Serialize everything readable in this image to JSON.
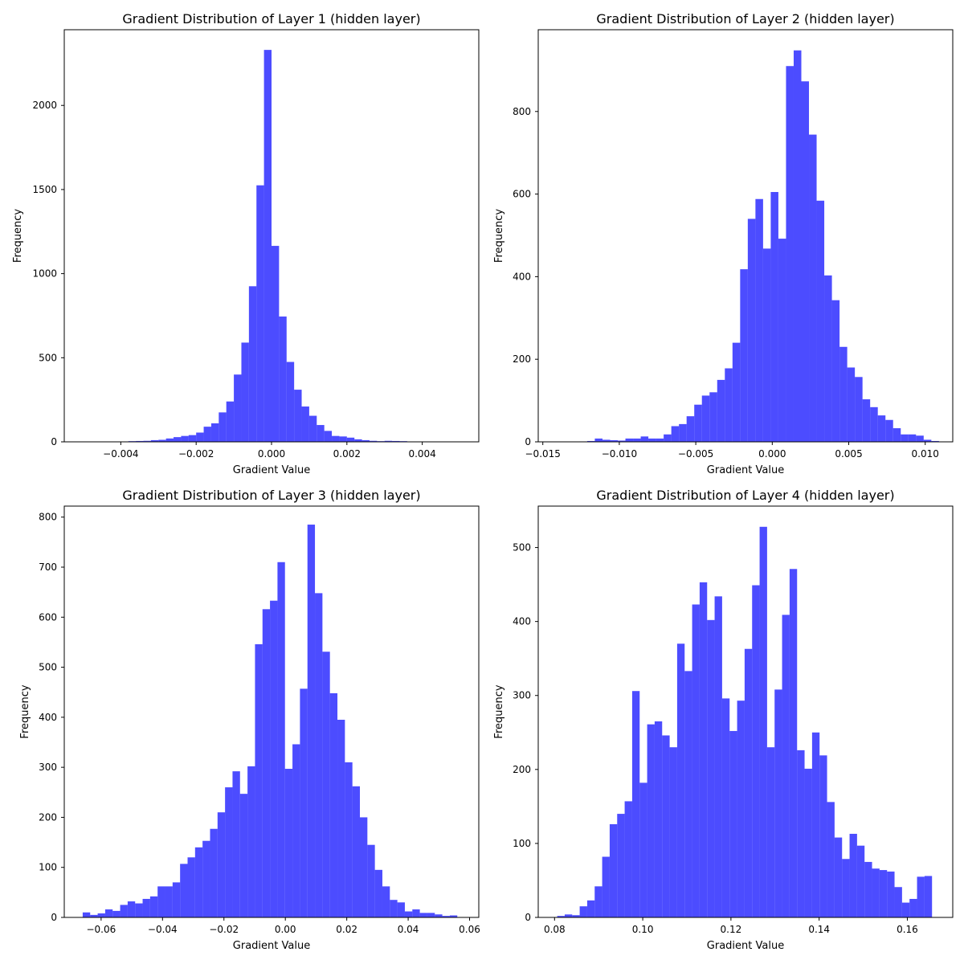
{
  "chart_data": [
    {
      "type": "bar",
      "title": "Gradient Distribution of Layer 1 (hidden layer)",
      "xlabel": "Gradient Value",
      "ylabel": "Frequency",
      "xlim": [
        -0.0055,
        0.0055
      ],
      "ylim": [
        0,
        2450
      ],
      "xticks": [
        -0.004,
        -0.002,
        0.0,
        0.002,
        0.004
      ],
      "xtick_labels": [
        "−0.004",
        "−0.002",
        "0.000",
        "0.002",
        "0.004"
      ],
      "yticks": [
        0,
        500,
        1000,
        1500,
        2000
      ],
      "ytick_labels": [
        "0",
        "500",
        "1000",
        "1500",
        "2000"
      ],
      "bin_start": -0.005,
      "bin_width": 0.0002,
      "values": [
        0,
        0,
        0,
        1,
        1,
        2,
        4,
        5,
        6,
        10,
        12,
        20,
        28,
        35,
        40,
        55,
        90,
        110,
        175,
        240,
        400,
        590,
        925,
        1525,
        2330,
        1165,
        745,
        475,
        310,
        210,
        155,
        100,
        65,
        35,
        32,
        25,
        15,
        10,
        6,
        4,
        6,
        5,
        4,
        2,
        1,
        1,
        0,
        0,
        0,
        0
      ]
    },
    {
      "type": "bar",
      "title": "Gradient Distribution of Layer 2 (hidden layer)",
      "xlabel": "Gradient Value",
      "ylabel": "Frequency",
      "xlim": [
        -0.0153,
        0.0118
      ],
      "ylim": [
        0,
        998
      ],
      "xticks": [
        -0.015,
        -0.01,
        -0.005,
        0.0,
        0.005,
        0.01
      ],
      "xtick_labels": [
        "−0.015",
        "−0.010",
        "−0.005",
        "0.000",
        "0.005",
        "0.010"
      ],
      "yticks": [
        0,
        200,
        400,
        600,
        800
      ],
      "ytick_labels": [
        "0",
        "200",
        "400",
        "600",
        "800"
      ],
      "bin_start": -0.0141,
      "bin_width": 0.0005,
      "values": [
        0,
        0,
        0,
        1,
        2,
        8,
        5,
        4,
        3,
        8,
        8,
        13,
        8,
        8,
        18,
        38,
        43,
        62,
        90,
        112,
        120,
        150,
        178,
        240,
        418,
        540,
        588,
        468,
        605,
        492,
        910,
        948,
        873,
        744,
        584,
        403,
        343,
        230,
        180,
        157,
        103,
        84,
        64,
        53,
        33,
        18,
        18,
        15,
        5,
        2
      ]
    },
    {
      "type": "bar",
      "title": "Gradient Distribution of Layer 3 (hidden layer)",
      "xlabel": "Gradient Value",
      "ylabel": "Frequency",
      "xlim": [
        -0.072,
        0.063
      ],
      "ylim": [
        0,
        822
      ],
      "xticks": [
        -0.06,
        -0.04,
        -0.02,
        0.0,
        0.02,
        0.04,
        0.06
      ],
      "xtick_labels": [
        "−0.06",
        "−0.04",
        "−0.02",
        "0.00",
        "0.02",
        "0.04",
        "0.06"
      ],
      "yticks": [
        0,
        100,
        200,
        300,
        400,
        500,
        600,
        700,
        800
      ],
      "ytick_labels": [
        "0",
        "100",
        "200",
        "300",
        "400",
        "500",
        "600",
        "700",
        "800"
      ],
      "bin_start": -0.066,
      "bin_width": 0.00244,
      "values": [
        10,
        5,
        8,
        16,
        13,
        25,
        32,
        28,
        37,
        42,
        62,
        62,
        70,
        107,
        120,
        140,
        153,
        177,
        210,
        260,
        292,
        247,
        302,
        546,
        616,
        633,
        710,
        297,
        346,
        457,
        785,
        648,
        531,
        448,
        395,
        310,
        262,
        200,
        145,
        95,
        62,
        35,
        30,
        12,
        16,
        9,
        9,
        6,
        3,
        4
      ]
    },
    {
      "type": "bar",
      "title": "Gradient Distribution of Layer 4 (hidden layer)",
      "xlabel": "Gradient Value",
      "ylabel": "Frequency",
      "xlim": [
        0.0763,
        0.1703
      ],
      "ylim": [
        0,
        556
      ],
      "xticks": [
        0.08,
        0.1,
        0.12,
        0.14,
        0.16
      ],
      "xtick_labels": [
        "0.08",
        "0.10",
        "0.12",
        "0.14",
        "0.16"
      ],
      "yticks": [
        0,
        100,
        200,
        300,
        400,
        500
      ],
      "ytick_labels": [
        "0",
        "100",
        "200",
        "300",
        "400",
        "500"
      ],
      "bin_start": 0.0806,
      "bin_width": 0.0017,
      "values": [
        2,
        4,
        3,
        15,
        23,
        42,
        82,
        126,
        140,
        157,
        306,
        182,
        261,
        265,
        246,
        230,
        370,
        333,
        423,
        453,
        402,
        434,
        296,
        252,
        293,
        363,
        449,
        528,
        230,
        308,
        409,
        471,
        226,
        201,
        250,
        219,
        156,
        108,
        79,
        113,
        97,
        75,
        66,
        64,
        62,
        41,
        20,
        25,
        55,
        56
      ]
    }
  ]
}
